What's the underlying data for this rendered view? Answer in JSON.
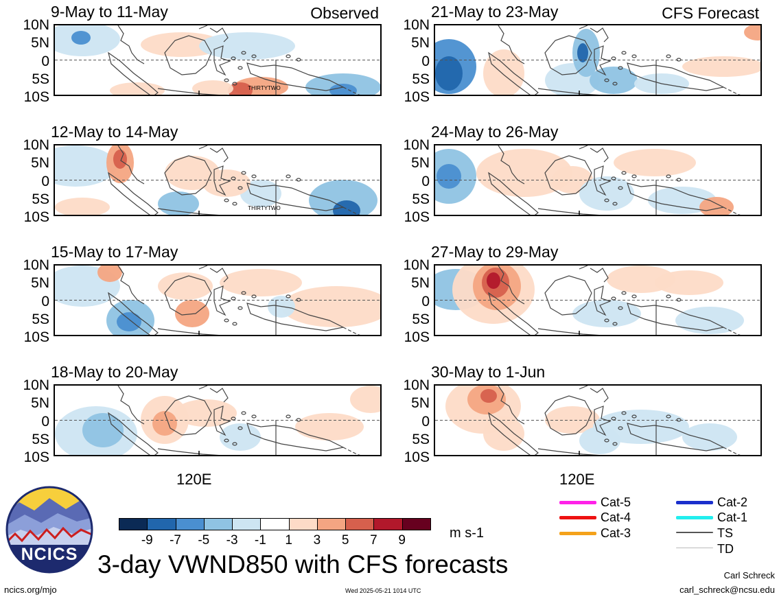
{
  "panels": [
    {
      "title": "9-May to 11-May",
      "tag": "Observed",
      "storm": "THIRTYTWO"
    },
    {
      "title": "12-May to 14-May",
      "tag": "",
      "storm": "THIRTYTWO"
    },
    {
      "title": "15-May to 17-May",
      "tag": "",
      "storm": ""
    },
    {
      "title": "18-May to 20-May",
      "tag": "",
      "storm": ""
    },
    {
      "title": "21-May to 23-May",
      "tag": "CFS Forecast",
      "storm": ""
    },
    {
      "title": "24-May to 26-May",
      "tag": "",
      "storm": ""
    },
    {
      "title": "27-May to 29-May",
      "tag": "",
      "storm": ""
    },
    {
      "title": "30-May to 1-Jun",
      "tag": "",
      "storm": ""
    }
  ],
  "y_ticks": [
    "10N",
    "5N",
    "0",
    "5S",
    "10S"
  ],
  "x_tick": "120E",
  "colorbar": {
    "ticks": [
      "-9",
      "-7",
      "-5",
      "-3",
      "-1",
      "1",
      "3",
      "5",
      "7",
      "9"
    ],
    "colors": [
      "#0b2a55",
      "#2166ac",
      "#4a8fd0",
      "#8fc3e3",
      "#cde5f2",
      "#ffffff",
      "#fddbc7",
      "#f4a582",
      "#d6604d",
      "#b2182b",
      "#67001f"
    ],
    "units": "m s-1"
  },
  "legend": [
    {
      "label": "Cat-5",
      "color": "#ff22e8"
    },
    {
      "label": "Cat-4",
      "color": "#ee1111"
    },
    {
      "label": "Cat-3",
      "color": "#f4a21a"
    },
    {
      "label": "Cat-2",
      "color": "#1a2fcc"
    },
    {
      "label": "Cat-1",
      "color": "#22eeee"
    },
    {
      "label": "TS",
      "color": "#555555"
    },
    {
      "label": "TD",
      "color": "#bbbbbb"
    }
  ],
  "logo_text": "NCICS",
  "main_title": "3-day VWND850 with CFS forecasts",
  "footer": {
    "url": "ncics.org/mjo",
    "timestamp": "Wed 2025-05-21 1014 UTC",
    "author": "Carl Schreck",
    "email": "carl_schreck@ncsu.edu"
  }
}
